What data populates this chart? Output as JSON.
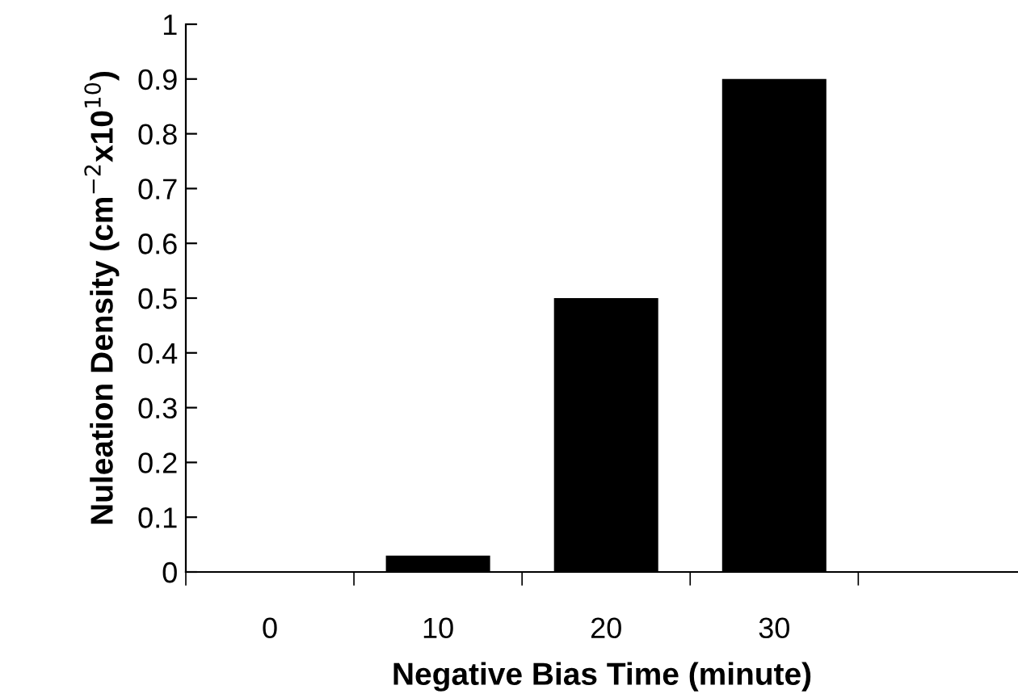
{
  "chart_data": {
    "type": "bar",
    "xlabel": "Negative Bias Time (minute)",
    "ylabel": "Nuleation Density (cm$^{−2}$x10$^{10}$)",
    "categories": [
      "0",
      "10",
      "20",
      "30",
      null
    ],
    "values": [
      0,
      0.03,
      0.5,
      0.9,
      null
    ],
    "color": "#000000",
    "ylim": [
      0,
      1
    ],
    "yticks": [
      0,
      0.1,
      0.2,
      0.3,
      0.4,
      0.5,
      0.6,
      0.7,
      0.8,
      0.9,
      1
    ],
    "grid": false,
    "legend": false
  }
}
